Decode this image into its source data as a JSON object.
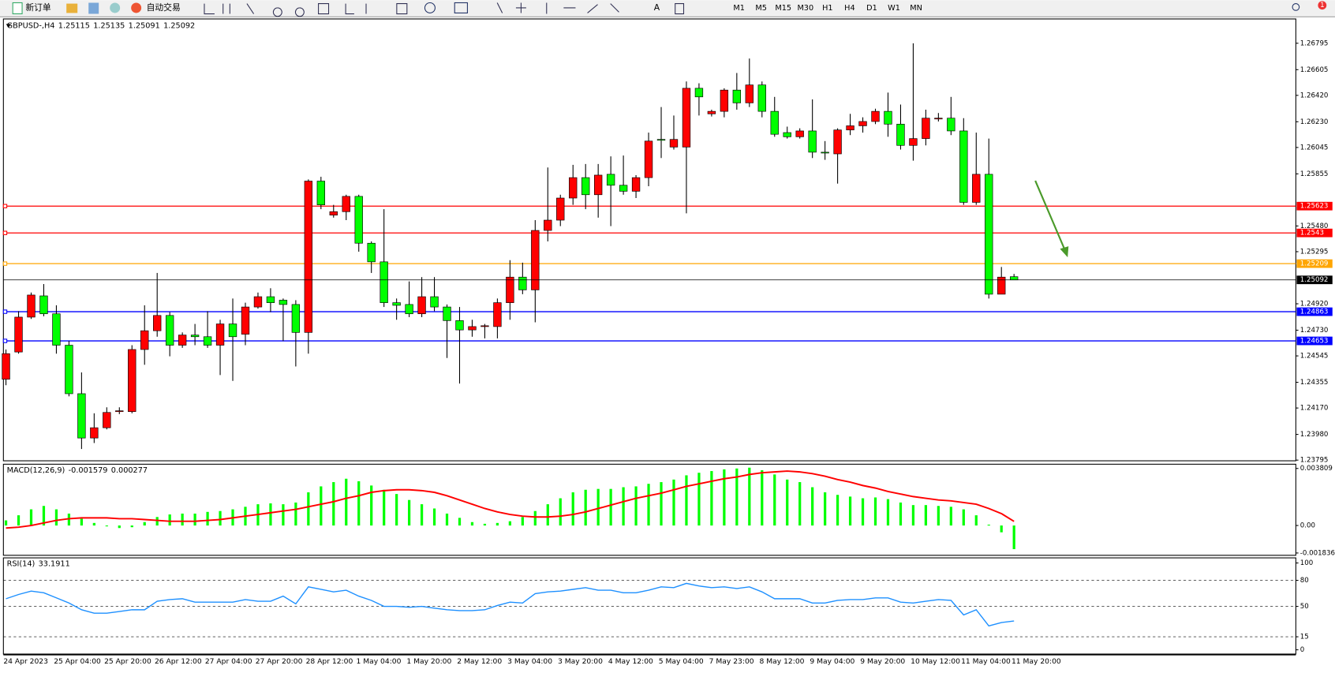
{
  "toolbar": {
    "new_order": "新订单",
    "auto_trading": "自动交易",
    "timeframes": [
      "M1",
      "M5",
      "M15",
      "M30",
      "H1",
      "H4",
      "D1",
      "W1",
      "MN"
    ],
    "notifications": 1
  },
  "chart_data": [
    {
      "type": "candlestick",
      "title": "GBPUSD-,H4",
      "categories": [
        "24 Apr 2023",
        null,
        null,
        null,
        "25 Apr 04:00",
        null,
        null,
        null,
        "25 Apr 20:00",
        null,
        null,
        null,
        "26 Apr 12:00",
        null,
        null,
        null,
        "27 Apr 04:00",
        null,
        null,
        null,
        "27 Apr 20:00",
        null,
        null,
        null,
        "28 Apr 12:00",
        null,
        null,
        null,
        "1 May 04:00",
        null,
        null,
        null,
        "1 May 20:00",
        null,
        null,
        null,
        "2 May 12:00",
        null,
        null,
        null,
        "3 May 04:00",
        null,
        null,
        null,
        "3 May 20:00",
        null,
        null,
        null,
        "4 May 12:00",
        null,
        null,
        null,
        "5 May 04:00",
        null,
        null,
        null,
        "7 May 23:00",
        null,
        null,
        null,
        "8 May 12:00",
        null,
        null,
        null,
        "9 May 04:00",
        null,
        null,
        null,
        "9 May 20:00",
        null,
        null,
        null,
        "10 May 12:00",
        null,
        null,
        null,
        "11 May 04:00",
        null,
        null,
        null,
        "11 May 20:00"
      ],
      "open": [
        1.24377,
        1.24573,
        1.24824,
        1.24977,
        1.24848,
        1.24622,
        1.24273,
        1.23954,
        1.24028,
        1.24144,
        1.24144,
        1.24591,
        1.24726,
        1.24836,
        1.24622,
        1.24695,
        1.24683,
        1.24622,
        1.24775,
        1.24701,
        1.24897,
        1.24971,
        1.24946,
        1.24915,
        1.24714,
        1.25803,
        1.25558,
        1.25583,
        1.25693,
        1.25356,
        1.25222,
        1.24928,
        1.24915,
        1.24848,
        1.24971,
        1.24897,
        1.24799,
        1.24732,
        1.24756,
        1.24756,
        1.24928,
        1.25112,
        1.2502,
        1.25448,
        1.25522,
        1.25681,
        1.25828,
        1.25705,
        1.25852,
        1.25773,
        1.2573,
        1.25828,
        1.26103,
        1.26048,
        1.26048,
        1.26471,
        1.26287,
        1.26305,
        1.26458,
        1.26366,
        1.26495,
        1.26305,
        1.26152,
        1.26122,
        1.26164,
        1.26011,
        1.25999,
        1.26171,
        1.26201,
        1.26232,
        1.26305,
        1.26213,
        1.2606,
        1.26109,
        1.2625,
        1.26256,
        1.26164,
        1.2565,
        1.25852,
        1.24989,
        1.25115
      ],
      "high": [
        1.24591,
        1.24867,
        1.25001,
        1.25062,
        1.24909,
        1.24652,
        1.24426,
        1.24132,
        1.24175,
        1.24175,
        1.24622,
        1.24909,
        1.25142,
        1.2486,
        1.24714,
        1.24775,
        1.24867,
        1.24805,
        1.24958,
        1.24928,
        1.25001,
        1.25032,
        1.24958,
        1.24946,
        1.25815,
        1.25834,
        1.25632,
        1.25705,
        1.25705,
        1.25369,
        1.25601,
        1.24958,
        1.25081,
        1.25112,
        1.25112,
        1.24915,
        1.24897,
        1.24805,
        1.24775,
        1.24958,
        1.25234,
        1.25216,
        1.25522,
        1.25901,
        1.25705,
        1.2592,
        1.25926,
        1.25926,
        1.25981,
        1.25987,
        1.25846,
        1.26152,
        1.26336,
        1.26275,
        1.2652,
        1.26507,
        1.26317,
        1.26471,
        1.26581,
        1.26685,
        1.2652,
        1.26409,
        1.26195,
        1.26183,
        1.26391,
        1.26091,
        1.26183,
        1.26287,
        1.26262,
        1.26324,
        1.2644,
        1.26354,
        1.26795,
        1.26317,
        1.26293,
        1.26409,
        1.26256,
        1.26152,
        1.26109,
        1.25185,
        1.25135
      ],
      "low": [
        1.24334,
        1.24561,
        1.24811,
        1.2483,
        1.24561,
        1.24254,
        1.23875,
        1.23918,
        1.24016,
        1.24126,
        1.24132,
        1.24481,
        1.24683,
        1.24542,
        1.24603,
        1.24622,
        1.24603,
        1.24407,
        1.24365,
        1.24622,
        1.24885,
        1.2486,
        1.24652,
        1.24469,
        1.24561,
        1.25601,
        1.2554,
        1.25522,
        1.25295,
        1.25142,
        1.24897,
        1.24805,
        1.24824,
        1.24824,
        1.24867,
        1.2453,
        1.24346,
        1.24683,
        1.24671,
        1.24671,
        1.24805,
        1.24989,
        1.24787,
        1.25369,
        1.25479,
        1.25632,
        1.25601,
        1.2554,
        1.25479,
        1.25705,
        1.25681,
        1.25766,
        1.25969,
        1.2603,
        1.25571,
        1.26275,
        1.26268,
        1.26262,
        1.26317,
        1.26336,
        1.26262,
        1.26122,
        1.26109,
        1.26109,
        1.25969,
        1.25956,
        1.25785,
        1.26134,
        1.26152,
        1.26213,
        1.26122,
        1.2603,
        1.2595,
        1.2606,
        1.26232,
        1.26134,
        1.25632,
        1.25632,
        1.24958,
        1.24989,
        1.25091
      ],
      "close": [
        1.24561,
        1.24824,
        1.24983,
        1.24848,
        1.24622,
        1.24273,
        1.23954,
        1.24028,
        1.24138,
        1.2415,
        1.24591,
        1.24726,
        1.24836,
        1.24622,
        1.24695,
        1.24683,
        1.24622,
        1.24775,
        1.24683,
        1.24897,
        1.24971,
        1.24928,
        1.24915,
        1.24714,
        1.25803,
        1.25632,
        1.25583,
        1.25693,
        1.25356,
        1.25222,
        1.24928,
        1.24909,
        1.24848,
        1.24971,
        1.24897,
        1.24799,
        1.24732,
        1.24756,
        1.24762,
        1.24928,
        1.25112,
        1.2502,
        1.25448,
        1.25522,
        1.25681,
        1.25828,
        1.25705,
        1.25846,
        1.25773,
        1.2573,
        1.25828,
        1.26091,
        1.26097,
        1.26103,
        1.26471,
        1.26409,
        1.26305,
        1.26458,
        1.26366,
        1.26495,
        1.26305,
        1.2614,
        1.26122,
        1.26164,
        1.26011,
        1.26005,
        1.26171,
        1.26201,
        1.26232,
        1.26305,
        1.26213,
        1.2606,
        1.26109,
        1.26256,
        1.26256,
        1.26164,
        1.2565,
        1.25852,
        1.24989,
        1.25112,
        1.25092
      ],
      "up_color": "#ff0000",
      "down_color": "#00ff00",
      "ylim": [
        1.2379,
        1.2697
      ],
      "yticks": [
        1.26795,
        1.26605,
        {
          "value": 1.2642,
          "label": "1.26420"
        },
        {
          "value": 1.2623,
          "label": "1.26230"
        },
        1.26045,
        1.25855,
        {
          "value": 1.2548,
          "label": "1.25480"
        },
        1.25295,
        {
          "value": 1.2492,
          "label": "1.24920"
        },
        {
          "value": 1.2473,
          "label": "1.24730"
        },
        1.24545,
        1.24355,
        {
          "value": 1.2417,
          "label": "1.24170"
        },
        {
          "value": 1.2398,
          "label": "1.23980"
        },
        1.23795
      ],
      "hlines": [
        {
          "value": 1.25623,
          "color": "#ff0000"
        },
        {
          "value": 1.2543,
          "label": "1.25430",
          "color": "#ff0000"
        },
        {
          "value": 1.25209,
          "color": "#ffa500"
        },
        {
          "value": 1.24863,
          "color": "#0000ff"
        },
        {
          "value": 1.24653,
          "color": "#0000ff"
        }
      ]
    },
    {
      "type": "macd",
      "title": "MACD(12,26,9)",
      "histogram": {
        "color": "#00ff00",
        "values": [
          0.000341,
          0.000682,
          0.001079,
          0.001307,
          0.001079,
          0.000795,
          0.000454,
          0.00017,
          -5.7e-05,
          -0.00017,
          -0.000114,
          0.000227,
          0.000568,
          0.000738,
          0.000795,
          0.000795,
          0.000909,
          0.000966,
          0.001079,
          0.00125,
          0.00142,
          0.001477,
          0.00142,
          0.001534,
          0.002215,
          0.002613,
          0.002897,
          0.003124,
          0.002954,
          0.00267,
          0.002386,
          0.002102,
          0.001704,
          0.00142,
          0.001136,
          0.000795,
          0.000511,
          0.000227,
          0.000114,
          0.00017,
          0.000284,
          0.000568,
          0.000966,
          0.00142,
          0.001818,
          0.002215,
          0.002386,
          0.002443,
          0.002443,
          0.002556,
          0.002613,
          0.002783,
          0.002897,
          0.003067,
          0.003351,
          0.003522,
          0.003635,
          0.003749,
          0.003806,
          0.003862,
          0.003692,
          0.003408,
          0.003067,
          0.002897,
          0.002556,
          0.002215,
          0.002045,
          0.001931,
          0.001818,
          0.001874,
          0.001761,
          0.001534,
          0.001363,
          0.001363,
          0.001306,
          0.00125,
          0.001079,
          0.000682,
          5.7e-05,
          -0.000454,
          -0.001579
        ]
      },
      "signal": {
        "color": "#ff0000",
        "values": [
          -0.00017,
          -0.000114,
          0,
          0.00017,
          0.000341,
          0.000454,
          0.000511,
          0.000511,
          0.000511,
          0.000454,
          0.000454,
          0.000398,
          0.000341,
          0.000284,
          0.000284,
          0.000284,
          0.000341,
          0.000398,
          0.000511,
          0.000625,
          0.000738,
          0.000852,
          0.000966,
          0.001079,
          0.00125,
          0.00142,
          0.00159,
          0.001818,
          0.001988,
          0.002215,
          0.002329,
          0.002386,
          0.002386,
          0.002329,
          0.002215,
          0.001988,
          0.001704,
          0.00142,
          0.001136,
          0.000909,
          0.000738,
          0.000625,
          0.000568,
          0.000568,
          0.000625,
          0.000738,
          0.000909,
          0.001136,
          0.001363,
          0.00159,
          0.001818,
          0.001988,
          0.002158,
          0.002386,
          0.002613,
          0.002783,
          0.002954,
          0.003124,
          0.003238,
          0.003408,
          0.003522,
          0.003578,
          0.003635,
          0.003578,
          0.003465,
          0.003294,
          0.003067,
          0.002897,
          0.00267,
          0.002499,
          0.002272,
          0.002102,
          0.001931,
          0.001818,
          0.001704,
          0.001647,
          0.001534,
          0.00142,
          0.001136,
          0.000795,
          0.000277
        ]
      },
      "ylim": [
        -0.00199,
        0.004093
      ],
      "yticks": [
        0.003809,
        {
          "value": 0,
          "label": "0.00"
        },
        -0.001836
      ]
    },
    {
      "type": "line",
      "title": "RSI(14)",
      "color": "#1e90ff",
      "values": [
        58.8,
        63.7,
        67.6,
        65.7,
        59.8,
        53.9,
        46.1,
        42.2,
        42.2,
        44.1,
        46.1,
        46.1,
        55.9,
        57.8,
        58.8,
        54.9,
        54.9,
        54.9,
        54.9,
        57.8,
        55.9,
        55.9,
        61.8,
        52.9,
        72.5,
        69.6,
        66.7,
        68.6,
        61.8,
        56.9,
        50,
        50,
        49,
        50,
        48,
        46.1,
        45.1,
        45.1,
        46.1,
        51,
        54.9,
        53.9,
        64.7,
        66.7,
        67.6,
        69.6,
        71.6,
        68.6,
        68.6,
        65.7,
        65.7,
        68.6,
        72.5,
        71.6,
        76.5,
        73.5,
        71.6,
        72.5,
        70.6,
        72.5,
        66.7,
        58.8,
        58.8,
        58.8,
        53.9,
        53.9,
        56.9,
        57.8,
        57.8,
        59.8,
        59.8,
        54.9,
        53.9,
        55.9,
        57.8,
        56.9,
        40.2,
        46.1,
        27.5,
        31.4,
        33.1911
      ],
      "ylim": [
        0,
        100
      ],
      "yticks": [
        100,
        80,
        50,
        15,
        0
      ]
    }
  ]
}
